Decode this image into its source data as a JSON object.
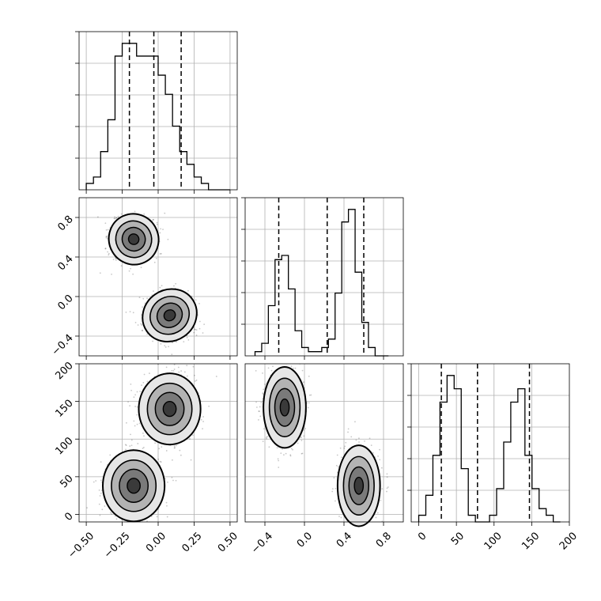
{
  "chart_data": {
    "type": "corner",
    "parameters": [
      "x0",
      "x1",
      "x2"
    ],
    "ranges": {
      "x0": [
        -0.55,
        0.55
      ],
      "x1": [
        -0.6,
        1.0
      ],
      "x2": [
        -10,
        200
      ]
    },
    "quantile_lines": {
      "x0": [
        -0.2,
        -0.03,
        0.16
      ],
      "x1": [
        -0.26,
        0.23,
        0.6
      ],
      "x2": [
        30,
        78,
        147
      ]
    },
    "tick_labels": {
      "x0": {
        "values": [
          -0.5,
          -0.25,
          0.0,
          0.25,
          0.5
        ],
        "labels": [
          "−0.50",
          "−0.25",
          "0.00",
          "0.25",
          "0.50"
        ]
      },
      "x1_yaxis": {
        "values": [
          -0.4,
          0.0,
          0.4,
          0.8
        ],
        "labels": [
          "−0.4",
          "0.0",
          "0.4",
          "0.8"
        ]
      },
      "x1_xaxis": {
        "values": [
          -0.4,
          0.0,
          0.4,
          0.8
        ],
        "labels": [
          "−0.4",
          "0.0",
          "0.4",
          "0.8"
        ]
      },
      "x2_yaxis": {
        "values": [
          0,
          50,
          100,
          150,
          200
        ],
        "labels": [
          "0",
          "50",
          "100",
          "150",
          "200"
        ]
      },
      "x2_xaxis": {
        "values": [
          0,
          50,
          100,
          150,
          200
        ],
        "labels": [
          "0",
          "50",
          "100",
          "150",
          "200"
        ]
      }
    },
    "histograms": {
      "x0": {
        "edges_start": -0.5,
        "bin_width": 0.05,
        "counts": [
          1,
          2,
          6,
          11,
          21,
          23,
          23,
          21,
          21,
          21,
          18,
          15,
          10,
          6,
          4,
          2,
          1,
          0,
          0,
          0
        ]
      },
      "x1": {
        "edges_start": -0.5,
        "bin_width": 0.0675,
        "counts": [
          1,
          3,
          12,
          23,
          24,
          16,
          6,
          2,
          1,
          1,
          2,
          4,
          15,
          32,
          35,
          20,
          8,
          2,
          0,
          0
        ]
      },
      "x2": {
        "edges_start": 0,
        "bin_width": 9.4,
        "counts": [
          1,
          4,
          10,
          18,
          22,
          20,
          8,
          1,
          0,
          0,
          1,
          5,
          12,
          18,
          20,
          10,
          5,
          2,
          1,
          0
        ]
      }
    },
    "clusters": {
      "x1_vs_x0": [
        {
          "cx": -0.17,
          "cy": 0.58,
          "rx": 0.08,
          "ry": 0.12,
          "rot": -25
        },
        {
          "cx": 0.08,
          "cy": -0.19,
          "rx": 0.09,
          "ry": 0.12,
          "rot": -35
        }
      ],
      "x2_vs_x0": [
        {
          "cx": 0.08,
          "cy": 140,
          "rx": 0.1,
          "ry": 22,
          "rot": 0
        },
        {
          "cx": -0.17,
          "cy": 38,
          "rx": 0.1,
          "ry": 22,
          "rot": 0
        }
      ],
      "x2_vs_x1": [
        {
          "cx": -0.2,
          "cy": 142,
          "rx": 0.1,
          "ry": 25,
          "rot": 0
        },
        {
          "cx": 0.55,
          "cy": 38,
          "rx": 0.1,
          "ry": 25,
          "rot": 0
        }
      ]
    },
    "grid": true,
    "title": "",
    "xlabel": "",
    "ylabel": ""
  }
}
